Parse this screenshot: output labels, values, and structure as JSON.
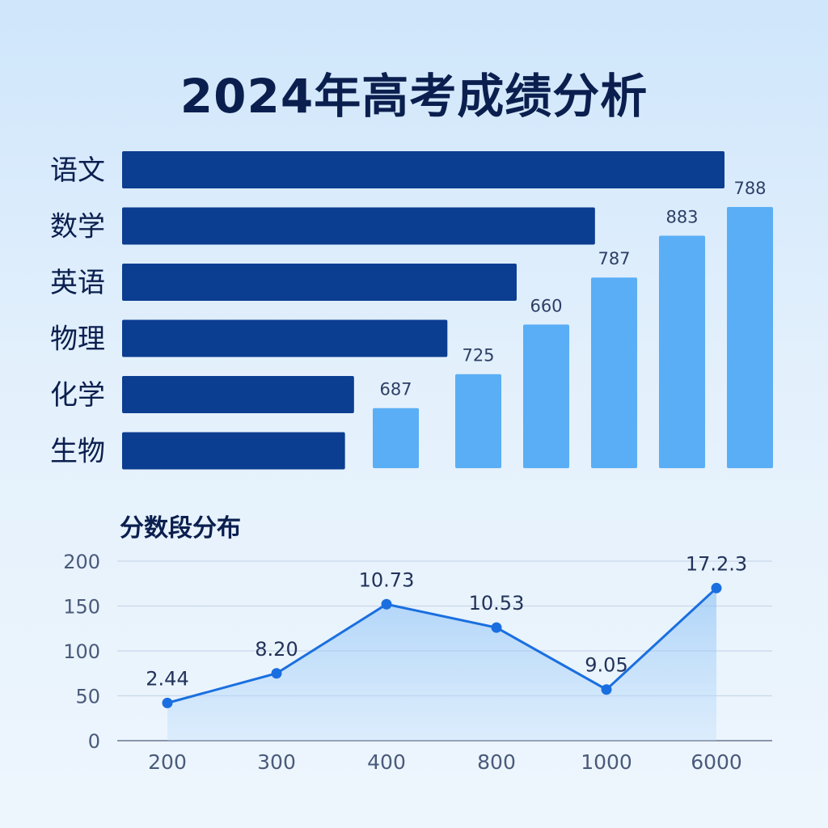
{
  "title": "2024年高考成绩分析",
  "subtitle": "分数段分布",
  "colors": {
    "subject_bar": "#0b3d91",
    "score_bar": "#5aaef5",
    "line": "#1a6fe0",
    "title": "#0b1f4f",
    "axis_text": "#4a5a7a"
  },
  "chart_data": [
    {
      "type": "bar",
      "orientation": "horizontal",
      "categories": [
        "语文",
        "数学",
        "英语",
        "物理",
        "化学",
        "生物"
      ],
      "values": [
        100,
        78.5,
        65.5,
        54,
        38.5,
        37
      ]
    },
    {
      "type": "bar",
      "orientation": "vertical",
      "values": [
        687,
        725,
        660,
        787,
        883,
        788
      ],
      "labels": [
        "687",
        "725",
        "660",
        "787",
        "883",
        "788"
      ],
      "relative_heights": [
        0.23,
        0.36,
        0.55,
        0.73,
        0.89,
        1.0
      ]
    },
    {
      "type": "area",
      "title": "分数段分布",
      "categories": [
        "200",
        "300",
        "400",
        "800",
        "1000",
        "6000"
      ],
      "values": [
        42,
        75,
        152,
        126,
        57,
        170
      ],
      "labels": [
        "2.44",
        "8.20",
        "10.73",
        "10.53",
        "9.05",
        "17.2.3"
      ],
      "ylim": [
        0,
        200
      ],
      "yticks": [
        "0",
        "50",
        "100",
        "150",
        "200"
      ],
      "grid": true
    }
  ]
}
